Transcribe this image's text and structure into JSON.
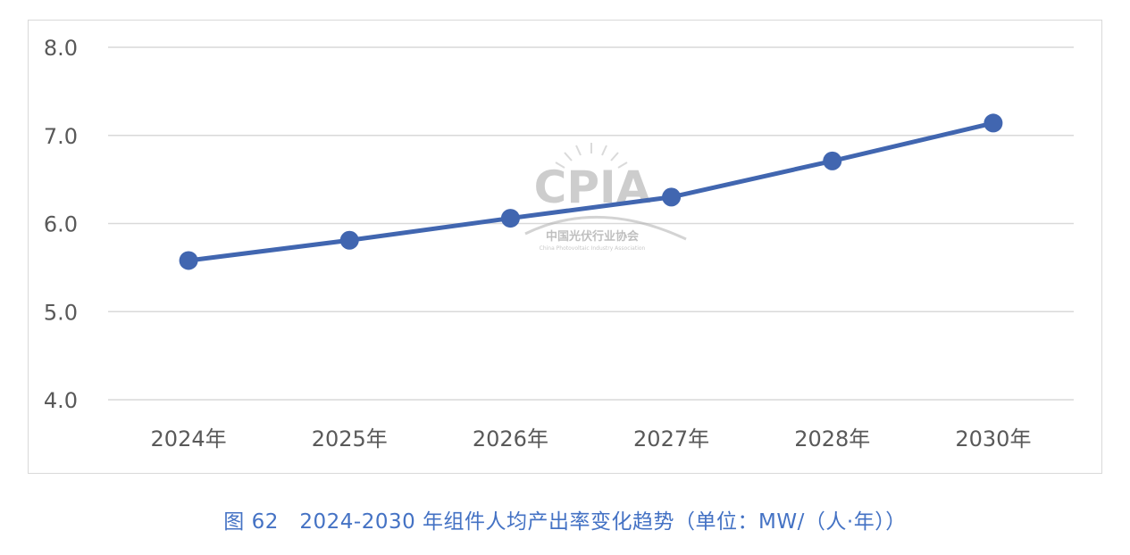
{
  "chart_data": {
    "type": "line",
    "categories": [
      "2024年",
      "2025年",
      "2026年",
      "2027年",
      "2028年",
      "2030年"
    ],
    "values": [
      5.58,
      5.81,
      6.06,
      6.3,
      6.71,
      7.14
    ],
    "ylim": [
      4.0,
      8.0
    ],
    "yticks": [
      "4.0",
      "5.0",
      "6.0",
      "7.0",
      "8.0"
    ],
    "grid": true,
    "legend": "none",
    "line_color": "#4166b0",
    "gridline_color": "#d9d9d9"
  },
  "watermark": {
    "logo_text": "CPIA",
    "org_name_cn": "中国光伏行业协会",
    "org_name_en": "China Photovoltaic Industry Association"
  },
  "caption": "图 62　2024-2030 年组件人均产出率变化趋势（单位：MW/（人·年））"
}
